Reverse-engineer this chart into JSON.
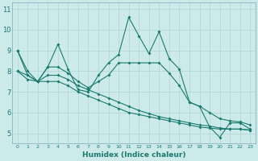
{
  "title": "",
  "xlabel": "Humidex (Indice chaleur)",
  "ylabel": "",
  "x": [
    0,
    1,
    2,
    3,
    4,
    5,
    6,
    7,
    8,
    9,
    10,
    11,
    12,
    13,
    14,
    15,
    16,
    17,
    18,
    19,
    20,
    21,
    22,
    23
  ],
  "line1": [
    9.0,
    7.8,
    7.5,
    8.2,
    9.3,
    8.1,
    7.1,
    7.0,
    7.8,
    8.4,
    8.8,
    10.6,
    9.7,
    8.85,
    9.9,
    8.6,
    8.1,
    6.5,
    6.3,
    5.3,
    4.8,
    5.5,
    5.5,
    5.2
  ],
  "line2": [
    8.0,
    7.8,
    7.5,
    8.2,
    8.2,
    7.9,
    7.5,
    7.2,
    7.5,
    7.8,
    8.4,
    8.4,
    8.4,
    8.4,
    8.4,
    7.9,
    7.3,
    6.5,
    6.3,
    6.0,
    5.7,
    5.6,
    5.55,
    5.4
  ],
  "line3": [
    9.0,
    8.0,
    7.5,
    7.8,
    7.8,
    7.6,
    7.3,
    7.1,
    6.9,
    6.7,
    6.5,
    6.3,
    6.1,
    5.95,
    5.8,
    5.7,
    5.6,
    5.5,
    5.4,
    5.35,
    5.25,
    5.2,
    5.2,
    5.15
  ],
  "line4": [
    8.0,
    7.6,
    7.5,
    7.5,
    7.5,
    7.3,
    7.0,
    6.8,
    6.6,
    6.4,
    6.2,
    6.0,
    5.9,
    5.8,
    5.7,
    5.6,
    5.5,
    5.4,
    5.3,
    5.25,
    5.2,
    5.2,
    5.2,
    5.15
  ],
  "line_color": "#1a7a6e",
  "bg_color": "#cceaea",
  "grid_color": "#b0d4d4",
  "ylim": [
    4.5,
    11.3
  ],
  "xlim": [
    -0.5,
    23.5
  ],
  "yticks": [
    5,
    6,
    7,
    8,
    9,
    10,
    11
  ],
  "xticks": [
    0,
    1,
    2,
    3,
    4,
    5,
    6,
    7,
    8,
    9,
    10,
    11,
    12,
    13,
    14,
    15,
    16,
    17,
    18,
    19,
    20,
    21,
    22,
    23
  ]
}
